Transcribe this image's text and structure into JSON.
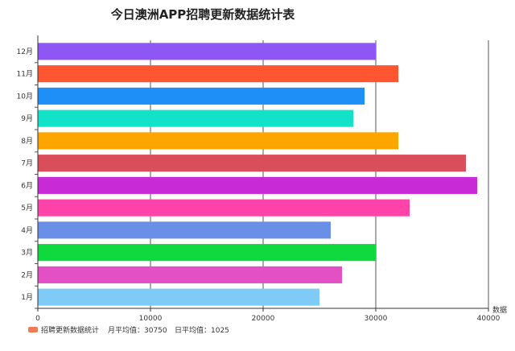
{
  "chart_data": {
    "type": "bar",
    "orientation": "horizontal",
    "title": "今日澳洲APP招聘更新数据统计表",
    "xlabel": "数据",
    "ylabel": "",
    "xlim": [
      0,
      40000
    ],
    "x_ticks": [
      "0",
      "10000",
      "20000",
      "30000",
      "40000"
    ],
    "x_tick_values": [
      0,
      10000,
      20000,
      30000,
      40000
    ],
    "categories": [
      "1月",
      "2月",
      "3月",
      "4月",
      "5月",
      "6月",
      "7月",
      "8月",
      "9月",
      "10月",
      "11月",
      "12月"
    ],
    "values": [
      25000,
      27000,
      30000,
      26000,
      33000,
      39000,
      38000,
      32000,
      28000,
      29000,
      32000,
      30000
    ],
    "colors": [
      "#7ecbf7",
      "#e34fc4",
      "#0fd93e",
      "#6a8fe6",
      "#ff43a8",
      "#c82bd6",
      "#d94e5a",
      "#ffa500",
      "#12e2c8",
      "#1e8ff7",
      "#ff5530",
      "#8e56f5"
    ],
    "grid": "vertical",
    "legend": {
      "position": "bottom-left",
      "series_name": "招聘更新数据统计",
      "swatch_color": "#f07c55",
      "monthly_avg": "月平均值：30750",
      "daily_avg": "日平均值：1025"
    }
  }
}
